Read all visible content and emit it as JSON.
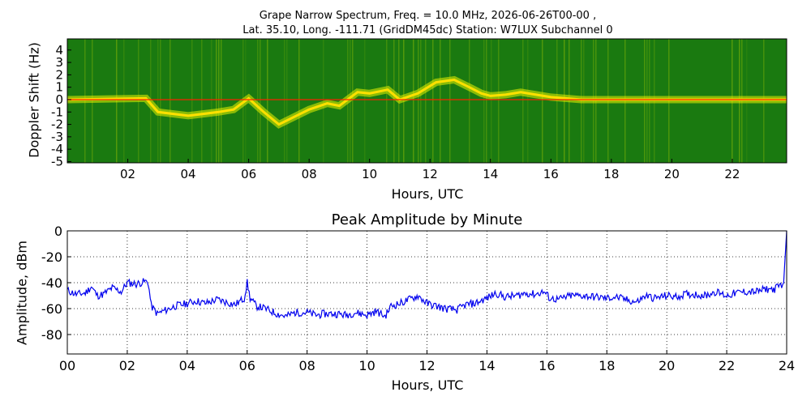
{
  "spectrogram": {
    "title_line1": "Grape Narrow Spectrum, Freq. = 10.0 MHz, 2026-06-26T00-00 ,",
    "title_line2": "Lat.  35.10, Long. -111.71 (GridDM45dc) Station: W7LUX Subchannel 0",
    "xlabel": "Hours, UTC",
    "ylabel": "Doppler Shift (Hz)",
    "x_ticks": [
      "02",
      "04",
      "06",
      "08",
      "10",
      "12",
      "14",
      "16",
      "18",
      "20",
      "22"
    ],
    "y_ticks": [
      "4",
      "3",
      "2",
      "1",
      "0",
      "-1",
      "-2",
      "-3",
      "-4",
      "-5"
    ],
    "colors": {
      "background": "#1a7a10",
      "mid": "#cfe000",
      "high": "#ff2000"
    }
  },
  "chart_data": {
    "type": "line",
    "title": "Peak Amplitude by Minute",
    "xlabel": "Hours, UTC",
    "ylabel": "Amplitude, dBm",
    "xlim": [
      0,
      24
    ],
    "ylim": [
      -95,
      0
    ],
    "x_tick_labels": [
      "00",
      "02",
      "04",
      "06",
      "08",
      "10",
      "12",
      "14",
      "16",
      "18",
      "20",
      "22",
      "24"
    ],
    "y_tick_labels": [
      "0",
      "-20",
      "-40",
      "-60",
      "-80"
    ],
    "grid": true,
    "line_color": "#0000ee",
    "x": [
      0.0,
      0.3,
      0.6,
      0.8,
      1.0,
      1.2,
      1.5,
      1.8,
      2.0,
      2.3,
      2.6,
      2.7,
      2.8,
      3.0,
      3.3,
      3.6,
      4.0,
      4.3,
      4.6,
      5.0,
      5.3,
      5.6,
      5.9,
      6.0,
      6.1,
      6.3,
      6.6,
      7.0,
      7.3,
      7.6,
      8.0,
      8.3,
      8.6,
      9.0,
      9.3,
      9.6,
      10.0,
      10.3,
      10.6,
      10.8,
      11.1,
      11.5,
      11.7,
      12.0,
      12.3,
      12.6,
      13.0,
      13.3,
      13.6,
      14.0,
      14.3,
      14.6,
      15.0,
      15.3,
      15.6,
      15.9,
      16.1,
      16.4,
      16.8,
      17.2,
      17.6,
      18.0,
      18.3,
      18.6,
      19.0,
      19.3,
      19.6,
      20.0,
      20.3,
      20.6,
      21.0,
      21.3,
      21.6,
      22.0,
      22.3,
      22.6,
      23.0,
      23.3,
      23.6,
      23.9,
      24.0
    ],
    "y": [
      -46,
      -49,
      -48,
      -43,
      -50,
      -49,
      -44,
      -47,
      -40,
      -41,
      -39,
      -40,
      -58,
      -64,
      -61,
      -58,
      -56,
      -54,
      -56,
      -53,
      -55,
      -57,
      -52,
      -40,
      -52,
      -58,
      -60,
      -64,
      -66,
      -63,
      -63,
      -65,
      -64,
      -64,
      -65,
      -63,
      -65,
      -62,
      -66,
      -58,
      -56,
      -52,
      -50,
      -56,
      -58,
      -60,
      -61,
      -57,
      -56,
      -52,
      -48,
      -51,
      -50,
      -48,
      -49,
      -47,
      -52,
      -53,
      -50,
      -50,
      -51,
      -52,
      -51,
      -53,
      -55,
      -50,
      -52,
      -50,
      -51,
      -49,
      -49,
      -50,
      -47,
      -50,
      -48,
      -47,
      -47,
      -45,
      -45,
      -40,
      0
    ]
  }
}
